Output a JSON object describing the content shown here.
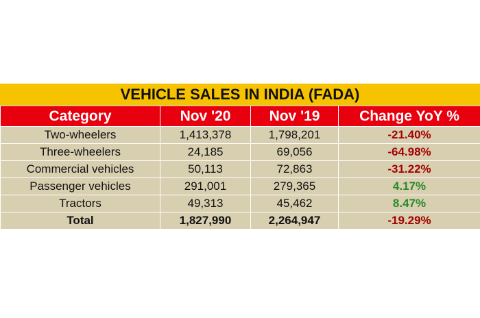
{
  "table": {
    "title": "VEHICLE SALES IN INDIA (FADA)",
    "header": [
      "Category",
      "Nov '20",
      "Nov '19",
      "Change YoY %"
    ],
    "rows": [
      [
        "Two-wheelers",
        "1,413,378",
        "1,798,201",
        "-21.40%"
      ],
      [
        "Three-wheelers",
        "24,185",
        "69,056",
        "-64.98%"
      ],
      [
        "Commercial vehicles",
        "50,113",
        "72,863",
        "-31.22%"
      ],
      [
        "Passenger vehicles",
        "291,001",
        "279,365",
        "4.17%"
      ],
      [
        "Tractors",
        "49,313",
        "45,462",
        "8.47%"
      ],
      [
        "Total",
        "1,827,990",
        "2,264,947",
        "-19.29%"
      ]
    ]
  }
}
